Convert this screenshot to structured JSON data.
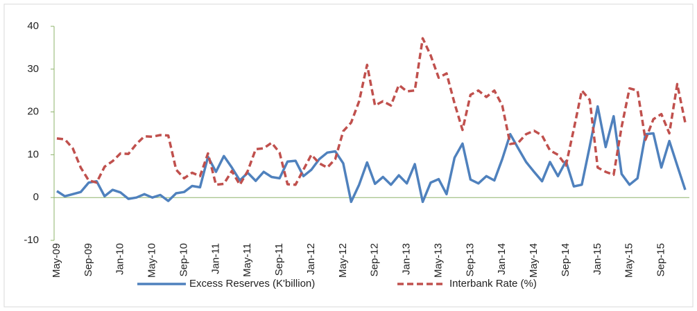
{
  "chart_data": {
    "type": "line",
    "categories": [
      "May-09",
      null,
      null,
      null,
      "Sep-09",
      null,
      null,
      null,
      "Jan-10",
      null,
      null,
      null,
      "May-10",
      null,
      null,
      null,
      "Sep-10",
      null,
      null,
      null,
      "Jan-11",
      null,
      null,
      null,
      "May-11",
      null,
      null,
      null,
      "Sep-11",
      null,
      null,
      null,
      "Jan-12",
      null,
      null,
      null,
      "May-12",
      null,
      null,
      null,
      "Sep-12",
      null,
      null,
      null,
      "Jan-13",
      null,
      null,
      null,
      "May-13",
      null,
      null,
      null,
      "Sep-13",
      null,
      null,
      null,
      "Jan-14",
      null,
      null,
      null,
      "May-14",
      null,
      null,
      null,
      "Sep-14",
      null,
      null,
      null,
      "Jan-15",
      null,
      null,
      null,
      "May-15",
      null,
      null,
      null,
      "Sep-15",
      null,
      null,
      null
    ],
    "series": [
      {
        "name": "Excess Reserves (K'billion)",
        "color": "#4f81bd",
        "dash": false,
        "values": [
          1.5,
          0.3,
          0.8,
          1.3,
          3.5,
          3.8,
          0.3,
          1.8,
          1.2,
          -0.3,
          0,
          0.8,
          0,
          0.6,
          -0.8,
          1,
          1.3,
          2.7,
          2.4,
          9.5,
          6,
          9.7,
          7,
          4,
          5.8,
          3.9,
          6,
          4.8,
          4.5,
          8.4,
          8.6,
          5,
          6.5,
          9,
          10.5,
          10.8,
          8,
          -1,
          3,
          8.2,
          3.2,
          4.8,
          3,
          5.2,
          3.3,
          7.8,
          -1,
          3.5,
          4.3,
          0.8,
          9.3,
          12.6,
          4.2,
          3.3,
          5,
          4,
          9,
          14.8,
          11.5,
          8.3,
          6,
          3.8,
          8.3,
          5,
          8.5,
          2.6,
          3,
          12,
          21.3,
          11.8,
          19,
          5.5,
          3,
          4.5,
          14.8,
          15,
          7,
          13.2,
          7.5,
          1.8
        ]
      },
      {
        "name": "Interbank Rate (%)",
        "color": "#c0504d",
        "dash": true,
        "values": [
          13.8,
          13.6,
          11.5,
          7,
          4,
          3.5,
          7.2,
          8.5,
          10.3,
          10.2,
          12.5,
          14.3,
          14.2,
          14.6,
          14.5,
          6.5,
          4.5,
          5.8,
          5,
          10.3,
          3,
          3.2,
          6.2,
          3,
          6.2,
          11.3,
          11.5,
          12.8,
          10.5,
          3.1,
          3,
          6.5,
          10,
          8,
          7,
          9,
          15.5,
          17.5,
          22.5,
          31,
          21.5,
          22.5,
          21.5,
          26.3,
          24.8,
          25,
          37.2,
          33.2,
          28,
          29,
          22,
          15.8,
          24,
          25,
          23.5,
          25,
          21.5,
          12.5,
          12.8,
          14.8,
          15.6,
          14.5,
          11,
          10,
          7.5,
          16,
          25,
          22.8,
          7,
          6,
          5.3,
          16.5,
          25.5,
          25,
          13.5,
          18.3,
          19.5,
          15,
          26.5,
          17.5
        ]
      }
    ],
    "ylim": [
      -10,
      40
    ],
    "yticks": [
      -10,
      0,
      10,
      20,
      30,
      40
    ],
    "legend": "bottom"
  }
}
